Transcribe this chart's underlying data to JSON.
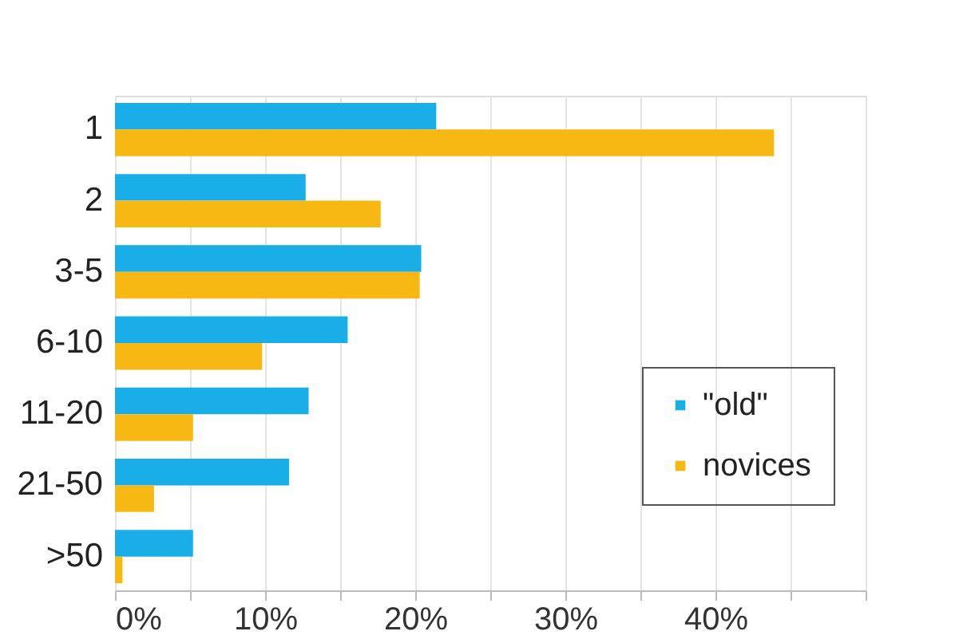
{
  "chart_data": {
    "type": "bar",
    "orientation": "horizontal",
    "categories": [
      "1",
      "2",
      "3-5",
      "6-10",
      "11-20",
      "21-50",
      ">50"
    ],
    "series": [
      {
        "name": "\"old\"",
        "color": "#1aaee8",
        "values": [
          21.4,
          12.7,
          20.4,
          15.5,
          12.9,
          11.6,
          5.2
        ]
      },
      {
        "name": "novices",
        "color": "#f7b813",
        "values": [
          43.9,
          17.7,
          20.3,
          9.8,
          5.2,
          2.6,
          0.5
        ]
      }
    ],
    "xlim": [
      0,
      50
    ],
    "xticks": [
      {
        "value": 0,
        "label": "0%"
      },
      {
        "value": 5,
        "label": null
      },
      {
        "value": 10,
        "label": "10%"
      },
      {
        "value": 15,
        "label": null
      },
      {
        "value": 20,
        "label": "20%"
      },
      {
        "value": 25,
        "label": null
      },
      {
        "value": 30,
        "label": "30%"
      },
      {
        "value": 35,
        "label": null
      },
      {
        "value": 40,
        "label": "40%"
      },
      {
        "value": 45,
        "label": null
      },
      {
        "value": 50,
        "label": null
      }
    ],
    "grid": "x",
    "legend": "right"
  }
}
